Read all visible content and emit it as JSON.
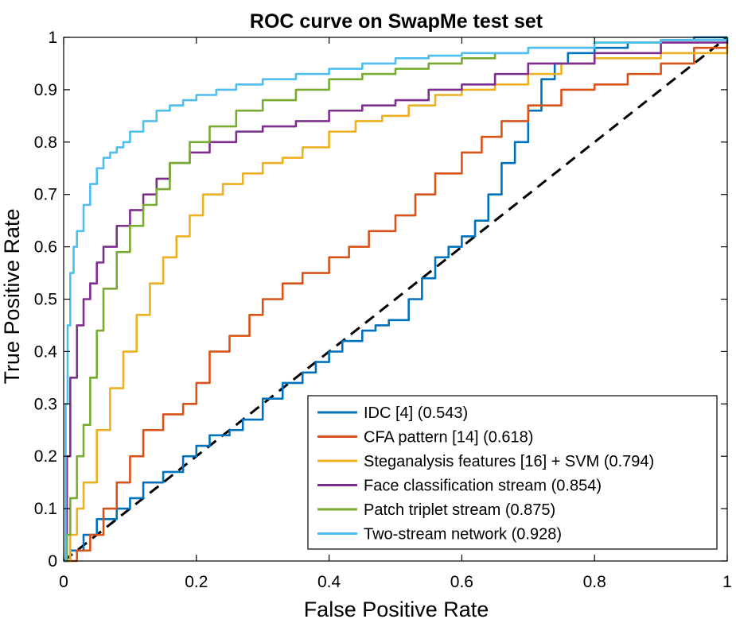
{
  "chart_data": {
    "type": "line",
    "title": "ROC curve on SwapMe test set",
    "xlabel": "False Positive Rate",
    "ylabel": "True Positive Rate",
    "xlim": [
      0,
      1
    ],
    "ylim": [
      0,
      1
    ],
    "xticks": [
      0,
      0.2,
      0.4,
      0.6,
      0.8,
      1
    ],
    "xtick_labels": [
      "0",
      "0.2",
      "0.4",
      "0.6",
      "0.8",
      "1"
    ],
    "yticks": [
      0,
      0.1,
      0.2,
      0.3,
      0.4,
      0.5,
      0.6,
      0.7,
      0.8,
      0.9,
      1
    ],
    "ytick_labels": [
      "0",
      "0.1",
      "0.2",
      "0.3",
      "0.4",
      "0.5",
      "0.6",
      "0.7",
      "0.8",
      "0.9",
      "1"
    ],
    "grid": false,
    "legend_position": "bottom-right",
    "series": [
      {
        "name": "IDC [4] (0.543)",
        "color": "#0072bd",
        "x": [
          0,
          0.01,
          0.03,
          0.05,
          0.08,
          0.1,
          0.12,
          0.15,
          0.18,
          0.2,
          0.22,
          0.25,
          0.27,
          0.3,
          0.33,
          0.36,
          0.38,
          0.4,
          0.42,
          0.45,
          0.47,
          0.49,
          0.52,
          0.54,
          0.56,
          0.58,
          0.6,
          0.62,
          0.64,
          0.66,
          0.68,
          0.7,
          0.72,
          0.74,
          0.76,
          0.8,
          0.85,
          0.9,
          0.95,
          1
        ],
        "y": [
          0,
          0.02,
          0.05,
          0.08,
          0.1,
          0.12,
          0.15,
          0.17,
          0.2,
          0.22,
          0.24,
          0.25,
          0.27,
          0.31,
          0.34,
          0.36,
          0.38,
          0.4,
          0.42,
          0.44,
          0.45,
          0.46,
          0.5,
          0.54,
          0.58,
          0.6,
          0.62,
          0.65,
          0.7,
          0.76,
          0.8,
          0.86,
          0.92,
          0.95,
          0.97,
          0.98,
          0.99,
          0.995,
          1,
          1
        ]
      },
      {
        "name": "CFA pattern [14] (0.618)",
        "color": "#d95319",
        "x": [
          0,
          0.02,
          0.04,
          0.06,
          0.08,
          0.1,
          0.12,
          0.15,
          0.18,
          0.2,
          0.22,
          0.25,
          0.28,
          0.3,
          0.33,
          0.36,
          0.4,
          0.43,
          0.46,
          0.5,
          0.53,
          0.56,
          0.6,
          0.63,
          0.66,
          0.7,
          0.75,
          0.8,
          0.85,
          0.9,
          0.95,
          1
        ],
        "y": [
          0,
          0.02,
          0.05,
          0.1,
          0.15,
          0.2,
          0.25,
          0.28,
          0.3,
          0.34,
          0.4,
          0.43,
          0.47,
          0.5,
          0.53,
          0.55,
          0.58,
          0.6,
          0.63,
          0.66,
          0.7,
          0.74,
          0.78,
          0.81,
          0.84,
          0.87,
          0.9,
          0.91,
          0.93,
          0.95,
          0.98,
          1
        ]
      },
      {
        "name": "Steganalysis features [16] + SVM (0.794)",
        "color": "#edb120",
        "x": [
          0,
          0.01,
          0.02,
          0.03,
          0.05,
          0.07,
          0.09,
          0.11,
          0.13,
          0.15,
          0.17,
          0.19,
          0.21,
          0.24,
          0.27,
          0.3,
          0.33,
          0.36,
          0.4,
          0.44,
          0.48,
          0.52,
          0.56,
          0.6,
          0.65,
          0.7,
          0.75,
          0.8,
          0.9,
          1
        ],
        "y": [
          0,
          0.05,
          0.1,
          0.15,
          0.25,
          0.33,
          0.4,
          0.47,
          0.53,
          0.58,
          0.62,
          0.66,
          0.7,
          0.72,
          0.74,
          0.76,
          0.77,
          0.79,
          0.82,
          0.84,
          0.85,
          0.87,
          0.89,
          0.9,
          0.91,
          0.93,
          0.95,
          0.96,
          0.97,
          1
        ]
      },
      {
        "name": "Face classification stream (0.854)",
        "color": "#7e2f8e",
        "x": [
          0,
          0.005,
          0.01,
          0.02,
          0.03,
          0.04,
          0.05,
          0.06,
          0.08,
          0.1,
          0.12,
          0.14,
          0.16,
          0.19,
          0.22,
          0.26,
          0.3,
          0.35,
          0.4,
          0.45,
          0.5,
          0.55,
          0.6,
          0.65,
          0.7,
          0.8,
          0.9,
          1
        ],
        "y": [
          0,
          0.2,
          0.35,
          0.45,
          0.5,
          0.53,
          0.57,
          0.6,
          0.64,
          0.67,
          0.7,
          0.73,
          0.76,
          0.78,
          0.8,
          0.82,
          0.83,
          0.84,
          0.86,
          0.87,
          0.88,
          0.9,
          0.91,
          0.93,
          0.95,
          0.97,
          0.99,
          1
        ]
      },
      {
        "name": "Patch triplet stream (0.875)",
        "color": "#77ac30",
        "x": [
          0,
          0.005,
          0.01,
          0.02,
          0.03,
          0.04,
          0.05,
          0.06,
          0.08,
          0.1,
          0.12,
          0.14,
          0.16,
          0.19,
          0.22,
          0.26,
          0.3,
          0.35,
          0.4,
          0.45,
          0.5,
          0.55,
          0.6,
          0.65,
          0.7,
          0.8,
          0.9,
          1
        ],
        "y": [
          0,
          0.05,
          0.12,
          0.2,
          0.26,
          0.35,
          0.44,
          0.52,
          0.59,
          0.64,
          0.68,
          0.71,
          0.76,
          0.8,
          0.83,
          0.86,
          0.88,
          0.9,
          0.92,
          0.93,
          0.94,
          0.95,
          0.96,
          0.97,
          0.98,
          0.99,
          0.995,
          1
        ]
      },
      {
        "name": "Two-stream network (0.928)",
        "color": "#4dbeee",
        "x": [
          0,
          0.003,
          0.006,
          0.01,
          0.015,
          0.02,
          0.03,
          0.04,
          0.05,
          0.06,
          0.07,
          0.08,
          0.09,
          0.1,
          0.12,
          0.14,
          0.16,
          0.18,
          0.2,
          0.23,
          0.26,
          0.3,
          0.35,
          0.4,
          0.45,
          0.5,
          0.55,
          0.6,
          0.7,
          0.8,
          0.9,
          1
        ],
        "y": [
          0,
          0.3,
          0.45,
          0.55,
          0.6,
          0.63,
          0.68,
          0.72,
          0.75,
          0.77,
          0.78,
          0.79,
          0.8,
          0.82,
          0.84,
          0.86,
          0.87,
          0.88,
          0.89,
          0.9,
          0.91,
          0.92,
          0.93,
          0.94,
          0.95,
          0.96,
          0.965,
          0.97,
          0.98,
          0.99,
          0.995,
          1
        ]
      }
    ],
    "reference_line": {
      "x": [
        0,
        1
      ],
      "y": [
        0,
        1
      ],
      "style": "dashed",
      "color": "#000000"
    }
  }
}
